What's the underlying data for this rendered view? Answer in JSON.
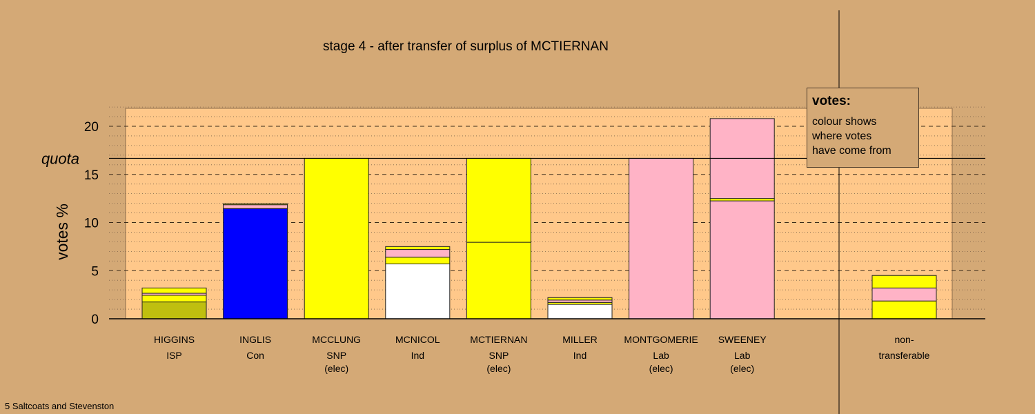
{
  "chart_data": {
    "type": "bar",
    "stacked": true,
    "title": "stage 4 - after transfer of surplus of MCTIERNAN",
    "ylabel": "votes %",
    "ylim": [
      0,
      22
    ],
    "yticks": [
      0,
      5,
      10,
      15,
      20
    ],
    "quota": 16.67,
    "quota_label": "quota",
    "grid": "dashed horizontal",
    "colors": {
      "ISP": "#bfbf0f",
      "Con": "#0000ff",
      "SNP": "#ffff00",
      "Ind": "#ffffff",
      "Lab": "#ffb3c6",
      "plot_bg": "#ffc88a",
      "page_bg": "#d4a976"
    },
    "bars": [
      {
        "candidate": "HIGGINS",
        "party": "ISP",
        "status": "",
        "segments": [
          {
            "source": "ISP",
            "value": 1.75
          },
          {
            "source": "SNP",
            "value": 0.7
          },
          {
            "source": "Lab",
            "value": 0.2
          },
          {
            "source": "SNP",
            "value": 0.55
          }
        ]
      },
      {
        "candidate": "INGLIS",
        "party": "Con",
        "status": "",
        "segments": [
          {
            "source": "Con",
            "value": 11.45
          },
          {
            "source": "Lab",
            "value": 0.4
          },
          {
            "source": "SNP",
            "value": 0.1
          }
        ]
      },
      {
        "candidate": "MCCLUNG",
        "party": "SNP",
        "status": "(elec)",
        "segments": [
          {
            "source": "SNP",
            "value": 16.67
          }
        ]
      },
      {
        "candidate": "MCNICOL",
        "party": "Ind",
        "status": "",
        "segments": [
          {
            "source": "Ind",
            "value": 5.7
          },
          {
            "source": "SNP",
            "value": 0.7
          },
          {
            "source": "Lab",
            "value": 0.8
          },
          {
            "source": "SNP",
            "value": 0.3
          }
        ]
      },
      {
        "candidate": "MCTIERNAN",
        "party": "SNP",
        "status": "(elec)",
        "segments": [
          {
            "source": "SNP",
            "value": 7.95
          },
          {
            "source": "SNP",
            "value": 8.72
          }
        ]
      },
      {
        "candidate": "MILLER",
        "party": "Ind",
        "status": "",
        "segments": [
          {
            "source": "Ind",
            "value": 1.5
          },
          {
            "source": "SNP",
            "value": 0.2
          },
          {
            "source": "Lab",
            "value": 0.25
          },
          {
            "source": "SNP",
            "value": 0.25
          }
        ]
      },
      {
        "candidate": "MONTGOMERIE",
        "party": "Lab",
        "status": "(elec)",
        "segments": [
          {
            "source": "Lab",
            "value": 16.67
          }
        ]
      },
      {
        "candidate": "SWEENEY",
        "party": "Lab",
        "status": "(elec)",
        "segments": [
          {
            "source": "Lab",
            "value": 12.25
          },
          {
            "source": "SNP",
            "value": 0.25
          },
          {
            "source": "Lab",
            "value": 8.3
          }
        ]
      }
    ],
    "nontransferable": {
      "label_line1": "non-",
      "label_line2": "transferable",
      "segments": [
        {
          "source": "SNP",
          "value": 1.85
        },
        {
          "source": "Lab",
          "value": 1.35
        },
        {
          "source": "SNP",
          "value": 1.3
        }
      ]
    }
  },
  "legend": {
    "title": "votes:",
    "lines": [
      "colour shows",
      "where votes",
      "have come from"
    ]
  },
  "footer": "5 Saltcoats and Stevenston"
}
